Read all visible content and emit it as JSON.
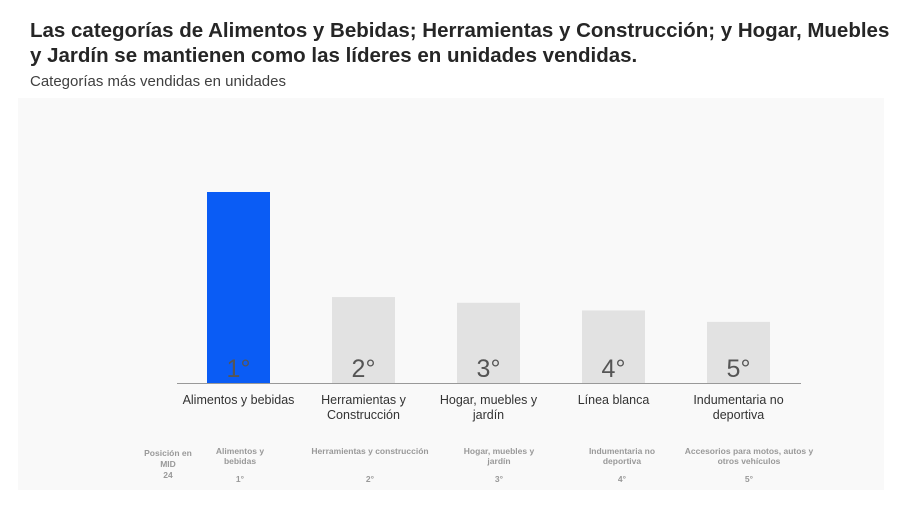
{
  "title": "Las categorías de Alimentos y Bebidas; Herramientas y Construcción; y Hogar, Muebles y Jardín se mantienen como las líderes en unidades vendidas.",
  "subtitle": "Categorías más vendidas en unidades",
  "chart_data": {
    "type": "bar",
    "title": "Categorías más vendidas en unidades",
    "categories": [
      "Alimentos y bebidas",
      "Herramientas y Construcción",
      "Hogar, muebles y jardín",
      "Línea blanca",
      "Indumentaria no deportiva"
    ],
    "values": [
      100,
      45,
      42,
      38,
      32
    ],
    "value_note": "relative units (no axis shown)",
    "rank_labels": [
      "1°",
      "2°",
      "3°",
      "4°",
      "5°"
    ],
    "colors": [
      "#0a5cf5",
      "#e2e2e2",
      "#e2e2e2",
      "#e2e2e2",
      "#e2e2e2"
    ],
    "ylim": [
      0,
      100
    ],
    "grid": false
  },
  "mid": {
    "label": "Posición en MID",
    "value": "24",
    "items": [
      {
        "name": "Alimentos y bebidas",
        "rank": "1°"
      },
      {
        "name": "Herramientas y construcción",
        "rank": "2°"
      },
      {
        "name": "Hogar, muebles y jardín",
        "rank": "3°"
      },
      {
        "name": "Indumentaria no deportiva",
        "rank": "4°"
      },
      {
        "name": "Accesorios para motos, autos y otros vehículos",
        "rank": "5°"
      }
    ]
  }
}
